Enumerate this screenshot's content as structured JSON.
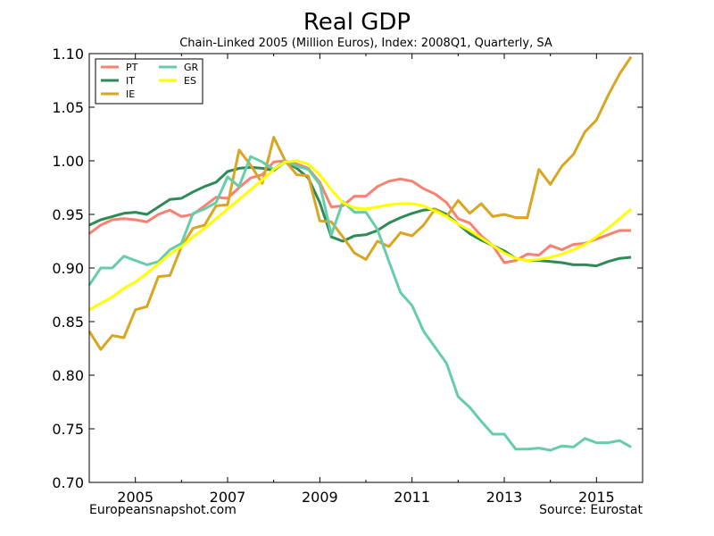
{
  "chart_data": {
    "type": "line",
    "title": "Real GDP",
    "subtitle": "Chain-Linked 2005 (Million Euros), Index: 2008Q1, Quarterly, SA",
    "xlabel": "",
    "ylabel": "",
    "xlim": [
      2004.0,
      2016.0
    ],
    "ylim": [
      0.7,
      1.1
    ],
    "x_start": "2004Q1",
    "x_frequency": "quarterly",
    "xticks": [
      2005,
      2007,
      2009,
      2011,
      2013,
      2015
    ],
    "xtick_labels": [
      "2005",
      "2007",
      "2009",
      "2011",
      "2013",
      "2015"
    ],
    "x_minor_ticks": [
      2006,
      2008,
      2010,
      2012,
      2014
    ],
    "yticks": [
      0.7,
      0.75,
      0.8,
      0.85,
      0.9,
      0.95,
      1.0,
      1.05,
      1.1
    ],
    "ytick_labels": [
      "0.70",
      "0.75",
      "0.80",
      "0.85",
      "0.90",
      "0.95",
      "1.00",
      "1.05",
      "1.10"
    ],
    "grid": false,
    "legend_position": "top-left",
    "footer_left": "Europeansnapshot.com",
    "footer_right": "Source: Eurostat",
    "series": [
      {
        "name": "PT",
        "color": "#fa8072",
        "values": [
          0.932,
          0.94,
          0.945,
          0.946,
          0.945,
          0.943,
          0.95,
          0.954,
          0.948,
          0.95,
          0.958,
          0.966,
          0.965,
          0.975,
          0.984,
          0.987,
          0.999,
          1.0,
          0.997,
          0.993,
          0.98,
          0.957,
          0.958,
          0.967,
          0.967,
          0.976,
          0.981,
          0.983,
          0.981,
          0.974,
          0.969,
          0.961,
          0.946,
          0.942,
          0.93,
          0.921,
          0.905,
          0.907,
          0.913,
          0.912,
          0.921,
          0.917,
          0.922,
          0.923,
          0.927,
          0.931,
          0.935,
          0.935
        ]
      },
      {
        "name": "IT",
        "color": "#2e8b57",
        "values": [
          0.94,
          0.945,
          0.948,
          0.951,
          0.952,
          0.95,
          0.957,
          0.964,
          0.965,
          0.971,
          0.976,
          0.98,
          0.99,
          0.993,
          0.994,
          0.993,
          0.991,
          0.999,
          0.993,
          0.984,
          0.961,
          0.929,
          0.925,
          0.93,
          0.931,
          0.935,
          0.942,
          0.947,
          0.951,
          0.954,
          0.955,
          0.95,
          0.941,
          0.932,
          0.926,
          0.921,
          0.916,
          0.909,
          0.907,
          0.907,
          0.906,
          0.905,
          0.903,
          0.903,
          0.902,
          0.906,
          0.909,
          0.91
        ]
      },
      {
        "name": "IE",
        "color": "#daa520",
        "values": [
          0.841,
          0.824,
          0.837,
          0.835,
          0.861,
          0.864,
          0.892,
          0.893,
          0.92,
          0.937,
          0.94,
          0.958,
          0.959,
          1.01,
          0.996,
          0.979,
          1.022,
          1.0,
          0.987,
          0.986,
          0.944,
          0.943,
          0.929,
          0.914,
          0.908,
          0.925,
          0.92,
          0.933,
          0.93,
          0.94,
          0.955,
          0.948,
          0.963,
          0.951,
          0.96,
          0.948,
          0.95,
          0.947,
          0.947,
          0.992,
          0.978,
          0.995,
          1.006,
          1.027,
          1.038,
          1.061,
          1.081,
          1.097
        ]
      },
      {
        "name": "GR",
        "color": "#66cdaa",
        "values": [
          0.884,
          0.9,
          0.9,
          0.911,
          0.907,
          0.903,
          0.906,
          0.917,
          0.923,
          0.951,
          0.955,
          0.961,
          0.985,
          0.976,
          1.004,
          0.999,
          0.992,
          1.0,
          0.995,
          0.992,
          0.978,
          0.931,
          0.962,
          0.952,
          0.952,
          0.936,
          0.906,
          0.877,
          0.865,
          0.841,
          0.826,
          0.811,
          0.78,
          0.77,
          0.757,
          0.745,
          0.745,
          0.731,
          0.731,
          0.732,
          0.73,
          0.734,
          0.733,
          0.741,
          0.737,
          0.737,
          0.739,
          0.733
        ]
      },
      {
        "name": "ES",
        "color": "#ffff00",
        "values": [
          0.861,
          0.867,
          0.873,
          0.881,
          0.887,
          0.895,
          0.904,
          0.913,
          0.92,
          0.929,
          0.937,
          0.946,
          0.955,
          0.964,
          0.973,
          0.982,
          0.992,
          0.999,
          1.0,
          0.997,
          0.987,
          0.973,
          0.961,
          0.956,
          0.955,
          0.957,
          0.959,
          0.96,
          0.96,
          0.958,
          0.953,
          0.948,
          0.941,
          0.935,
          0.928,
          0.921,
          0.914,
          0.909,
          0.907,
          0.908,
          0.91,
          0.913,
          0.917,
          0.922,
          0.929,
          0.937,
          0.946,
          0.955
        ]
      }
    ]
  }
}
